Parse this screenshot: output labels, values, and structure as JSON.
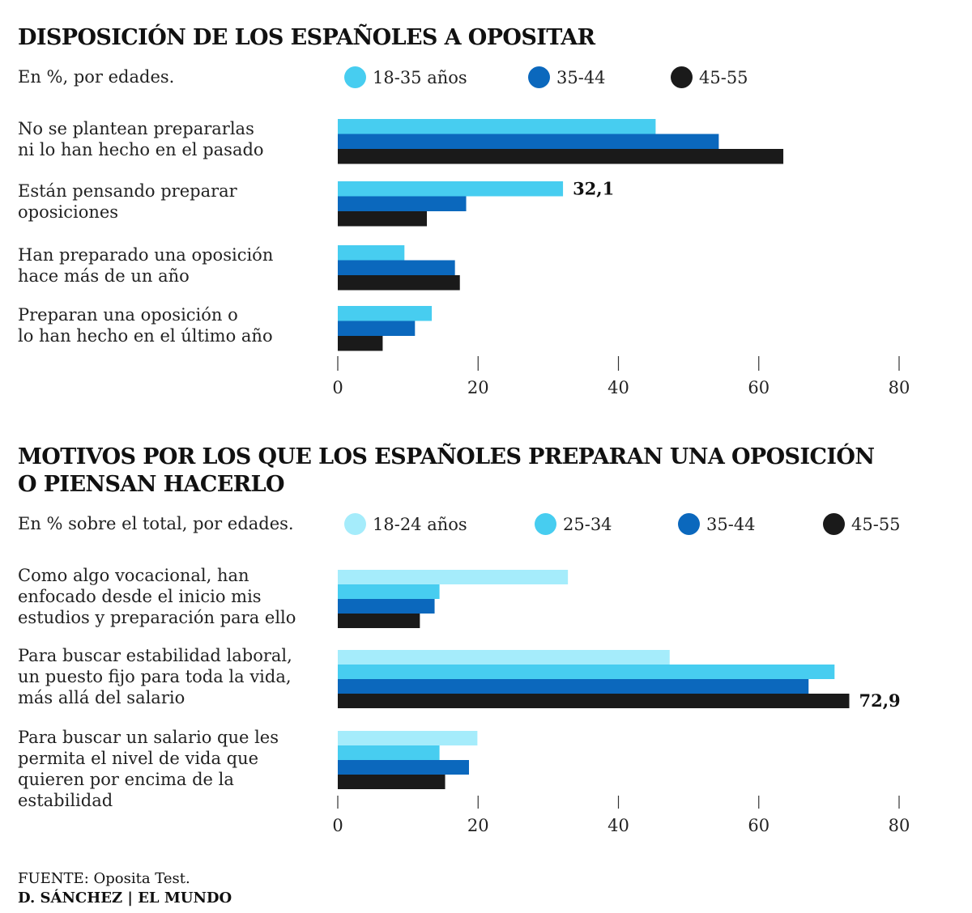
{
  "chart_data": [
    {
      "type": "bar",
      "orientation": "horizontal",
      "title": "DISPOSICIÓN DE LOS ESPAÑOLES A OPOSITAR",
      "subtitle": "En %,  por edades.",
      "categories": [
        "No se plantean prepararlas\nni lo han hecho en el pasado",
        "Están pensando preparar\noposiciones",
        "Han preparado una oposición\nhace más de un año",
        "Preparan una oposición o\nlo han hecho en el último año"
      ],
      "series": [
        {
          "name": "18-35 años",
          "color": "#47cdf0",
          "values": [
            45.3,
            32.1,
            9.5,
            13.4
          ]
        },
        {
          "name": "35-44",
          "color": "#0b68bd",
          "values": [
            54.3,
            18.3,
            16.7,
            11.0
          ]
        },
        {
          "name": "45-55",
          "color": "#1a1a1a",
          "values": [
            63.5,
            12.7,
            17.4,
            6.4
          ]
        }
      ],
      "data_labels": [
        {
          "series": 0,
          "category": 1,
          "text": "32,1"
        }
      ],
      "xlim": [
        0,
        80
      ],
      "xticks": [
        "0",
        "20",
        "40",
        "60",
        "80"
      ]
    },
    {
      "type": "bar",
      "orientation": "horizontal",
      "title": "MOTIVOS POR LOS QUE LOS ESPAÑOLES PREPARAN UNA OPOSICIÓN\nO PIENSAN HACERLO",
      "subtitle": "En % sobre el total, por edades.",
      "categories": [
        "Como algo vocacional, han\nenfocado desde el inicio mis\nestudios y preparación para ello",
        "Para buscar estabilidad laboral,\nun puesto fijo para toda la vida,\nmás allá del salario",
        "Para buscar un salario que les\npermita el nivel de vida que\nquieren por encima de la\nestabilidad"
      ],
      "series": [
        {
          "name": "18-24 años",
          "color": "#a5ecfb",
          "values": [
            32.8,
            47.3,
            19.9
          ]
        },
        {
          "name": "25-34",
          "color": "#47cdf0",
          "values": [
            14.5,
            70.8,
            14.5
          ]
        },
        {
          "name": "35-44",
          "color": "#0b68bd",
          "values": [
            13.8,
            67.1,
            18.7
          ]
        },
        {
          "name": "45-55",
          "color": "#1a1a1a",
          "values": [
            11.7,
            72.9,
            15.3
          ]
        }
      ],
      "data_labels": [
        {
          "series": 3,
          "category": 1,
          "text": "72,9"
        }
      ],
      "xlim": [
        0,
        80
      ],
      "xticks": [
        "0",
        "20",
        "40",
        "60",
        "80"
      ]
    }
  ],
  "footer": {
    "source_label": "FUENTE:",
    "source_text": " Oposita Test.",
    "credit": "D. SÁNCHEZ | EL MUNDO"
  }
}
